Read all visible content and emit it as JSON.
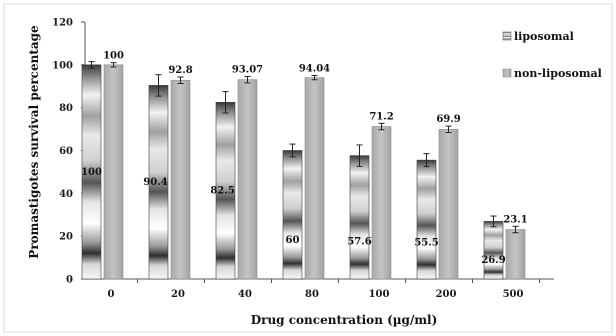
{
  "chart_data": {
    "type": "bar",
    "categories": [
      "0",
      "20",
      "40",
      "80",
      "100",
      "200",
      "500"
    ],
    "series": [
      {
        "name": "liposomal",
        "values": [
          100,
          90.4,
          82.5,
          60,
          57.6,
          55.5,
          26.9
        ],
        "errors": [
          1.5,
          5,
          5,
          3,
          5,
          3,
          2.5
        ],
        "labels": [
          "100",
          "90.4",
          "82.5",
          "60",
          "57.6",
          "55.5",
          "26.9"
        ]
      },
      {
        "name": "non-liposomal",
        "values": [
          100,
          92.8,
          93.07,
          94.04,
          71.2,
          69.9,
          23.1
        ],
        "errors": [
          1,
          1.5,
          1.5,
          1,
          1.5,
          1.5,
          1.5
        ],
        "labels": [
          "100",
          "92.8",
          "93.07",
          "94.04",
          "71.2",
          "69.9",
          "23.1"
        ]
      }
    ],
    "xlabel": "Drug concentration (µg/ml)",
    "ylabel": "Promastigotes  survival percentage",
    "ylim": [
      0,
      120
    ],
    "yticks": [
      "0",
      "20",
      "40",
      "60",
      "80",
      "100",
      "120"
    ],
    "grid": false,
    "legend_position": "top-right",
    "colors": {
      "liposomal": "#5e5e5e",
      "non-liposomal": "#b8b8b8"
    }
  }
}
